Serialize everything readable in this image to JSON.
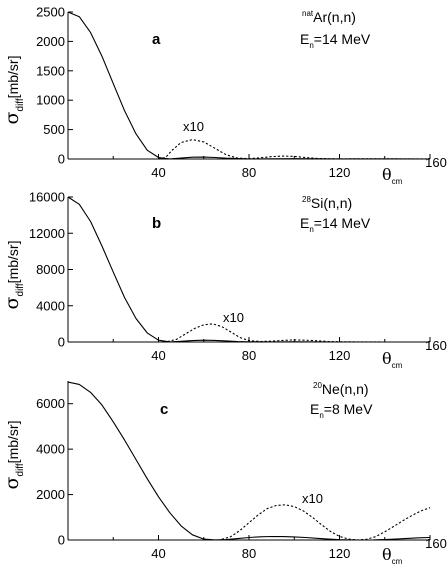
{
  "chart_data": [
    {
      "type": "line",
      "panel_label": "a",
      "reaction": {
        "superscript": "nat",
        "main": "Ar(n,n)"
      },
      "energy": {
        "symbol": "E",
        "subscript": "n",
        "value": "=14 MeV"
      },
      "ylabel": {
        "symbol": "σ",
        "subscript": "diff",
        "unit": "[mb/sr]"
      },
      "xlabel": {
        "symbol": "θ",
        "subscript": "cm"
      },
      "xlim": [
        0,
        160
      ],
      "ylim": [
        0,
        2500
      ],
      "xticks": [
        "40",
        "80",
        "120",
        "160"
      ],
      "yticks": [
        "0",
        "500",
        "1000",
        "1500",
        "2000",
        "2500"
      ],
      "magnified_label": "x10",
      "series": [
        {
          "style": "solid",
          "x": [
            0,
            5,
            10,
            15,
            20,
            25,
            30,
            35,
            40,
            45,
            50,
            55,
            60,
            65,
            70,
            75,
            80,
            90,
            100,
            110,
            120,
            130,
            140,
            150,
            160
          ],
          "y": [
            2500,
            2420,
            2150,
            1750,
            1280,
            820,
            430,
            150,
            25,
            2,
            15,
            30,
            32,
            25,
            14,
            6,
            2,
            4,
            5,
            3,
            1,
            1,
            1,
            1,
            0
          ]
        },
        {
          "style": "dashed",
          "x": [
            40,
            43,
            46,
            50,
            55,
            60,
            65,
            70,
            75,
            80,
            85,
            90,
            95,
            100,
            105,
            110,
            115,
            120,
            130,
            140,
            150,
            160
          ],
          "y": [
            10,
            20,
            150,
            280,
            330,
            290,
            180,
            70,
            15,
            5,
            20,
            40,
            50,
            45,
            25,
            10,
            3,
            1,
            3,
            4,
            2,
            0
          ]
        }
      ]
    },
    {
      "type": "line",
      "panel_label": "b",
      "reaction": {
        "superscript": "28",
        "main": "Si(n,n)"
      },
      "energy": {
        "symbol": "E",
        "subscript": "n",
        "value": "=14 MeV"
      },
      "ylabel": {
        "symbol": "σ",
        "subscript": "diff",
        "unit": "[mb/sr]"
      },
      "xlabel": {
        "symbol": "θ",
        "subscript": "cm"
      },
      "xlim": [
        0,
        160
      ],
      "ylim": [
        0,
        16000
      ],
      "xticks": [
        "40",
        "80",
        "120",
        "160"
      ],
      "yticks": [
        "0",
        "4000",
        "8000",
        "12000",
        "16000"
      ],
      "magnified_label": "x10",
      "series": [
        {
          "style": "solid",
          "x": [
            0,
            5,
            10,
            15,
            20,
            25,
            30,
            35,
            40,
            45,
            50,
            55,
            60,
            65,
            70,
            75,
            80,
            90,
            100,
            110,
            120,
            130,
            140,
            150,
            160
          ],
          "y": [
            16000,
            15200,
            13300,
            10600,
            7700,
            4900,
            2600,
            1000,
            200,
            10,
            80,
            160,
            200,
            180,
            120,
            60,
            20,
            10,
            20,
            15,
            5,
            2,
            2,
            1,
            0
          ]
        },
        {
          "style": "dashed",
          "x": [
            44,
            48,
            52,
            56,
            60,
            64,
            68,
            72,
            76,
            80,
            85,
            90,
            95,
            100,
            105,
            110,
            115,
            120,
            130,
            140,
            160
          ],
          "y": [
            50,
            300,
            900,
            1500,
            1900,
            2000,
            1700,
            1100,
            500,
            150,
            60,
            100,
            180,
            230,
            200,
            130,
            60,
            20,
            10,
            5,
            0
          ]
        }
      ]
    },
    {
      "type": "line",
      "panel_label": "c",
      "reaction": {
        "superscript": "20",
        "main": "Ne(n,n)"
      },
      "energy": {
        "symbol": "E",
        "subscript": "n",
        "value": "=8 MeV"
      },
      "ylabel": {
        "symbol": "σ",
        "subscript": "diff",
        "unit": "[mb/sr]"
      },
      "xlabel": {
        "symbol": "θ",
        "subscript": "cm"
      },
      "xlim": [
        0,
        160
      ],
      "ylim": [
        0,
        7000
      ],
      "xticks": [
        "40",
        "80",
        "120",
        "160"
      ],
      "yticks": [
        "0",
        "2000",
        "4000",
        "6000"
      ],
      "magnified_label": "x10",
      "series": [
        {
          "style": "solid",
          "x": [
            0,
            5,
            10,
            15,
            20,
            25,
            30,
            35,
            40,
            45,
            50,
            55,
            60,
            65,
            70,
            75,
            80,
            85,
            90,
            95,
            100,
            105,
            110,
            115,
            120,
            125,
            130,
            135,
            140,
            145,
            150,
            155,
            160
          ],
          "y": [
            6950,
            6850,
            6500,
            5950,
            5200,
            4400,
            3550,
            2700,
            1900,
            1200,
            620,
            230,
            40,
            5,
            20,
            60,
            110,
            140,
            155,
            150,
            135,
            110,
            75,
            40,
            15,
            3,
            0,
            5,
            20,
            45,
            70,
            95,
            110
          ]
        },
        {
          "style": "dashed",
          "x": [
            68,
            72,
            76,
            80,
            84,
            88,
            92,
            96,
            100,
            104,
            108,
            112,
            116,
            120,
            124,
            128,
            132,
            136,
            140,
            144,
            148,
            152,
            156,
            160
          ],
          "y": [
            30,
            150,
            420,
            760,
            1100,
            1380,
            1520,
            1550,
            1470,
            1280,
            1000,
            680,
            380,
            160,
            40,
            2,
            30,
            150,
            360,
            600,
            850,
            1080,
            1280,
            1420
          ]
        }
      ]
    }
  ]
}
